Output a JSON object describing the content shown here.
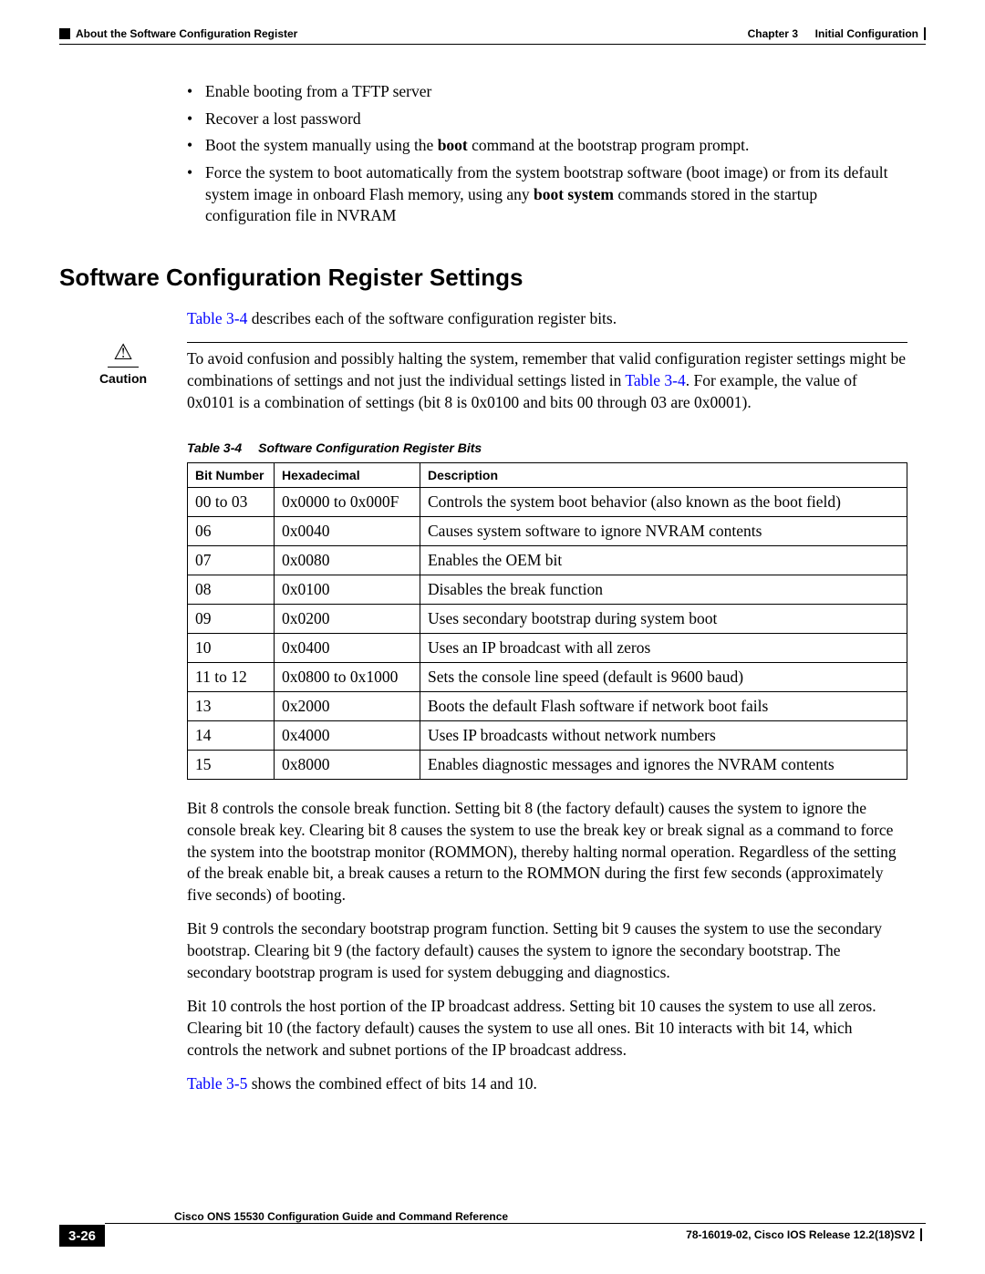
{
  "header": {
    "left": "About the Software Configuration Register",
    "right_chapter": "Chapter 3",
    "right_title": "Initial Configuration"
  },
  "bullets": {
    "b1": "Enable booting from a TFTP server",
    "b2": "Recover a lost password",
    "b3a": "Boot the system manually using the ",
    "b3bold": "boot",
    "b3b": " command at the bootstrap program prompt.",
    "b4a": "Force the system to boot automatically from the system bootstrap software (boot image) or from its default system image in onboard Flash memory, using any ",
    "b4bold": "boot system",
    "b4b": " commands stored in the startup configuration file in NVRAM"
  },
  "heading": "Software Configuration Register Settings",
  "intro": {
    "link": "Table 3-4",
    "rest": " describes each of the software configuration register bits."
  },
  "caution": {
    "label": "Caution",
    "text_a": "To avoid confusion and possibly halting the system, remember that valid configuration register settings might be combinations of settings and not just the individual settings listed in ",
    "link": "Table 3-4",
    "text_b": ". For example, the value of 0x0101 is a combination of settings (bit 8 is 0x0100 and bits 00 through 03 are 0x0001)."
  },
  "table": {
    "caption_num": "Table 3-4",
    "caption_title": "Software Configuration Register Bits",
    "col1": "Bit Number",
    "col2": "Hexadecimal",
    "col3": "Description",
    "rows": [
      {
        "bit": "00 to 03",
        "hex": "0x0000 to 0x000F",
        "desc": "Controls the system boot behavior (also known as the boot field)"
      },
      {
        "bit": "06",
        "hex": "0x0040",
        "desc": "Causes system software to ignore NVRAM contents"
      },
      {
        "bit": "07",
        "hex": "0x0080",
        "desc": "Enables the OEM bit"
      },
      {
        "bit": "08",
        "hex": "0x0100",
        "desc": "Disables the break function"
      },
      {
        "bit": "09",
        "hex": "0x0200",
        "desc": "Uses secondary bootstrap during system boot"
      },
      {
        "bit": "10",
        "hex": "0x0400",
        "desc": "Uses an IP broadcast with all zeros"
      },
      {
        "bit": "11 to 12",
        "hex": "0x0800 to 0x1000",
        "desc": "Sets the console line speed (default is 9600 baud)"
      },
      {
        "bit": "13",
        "hex": "0x2000",
        "desc": "Boots the default Flash software if network boot fails"
      },
      {
        "bit": "14",
        "hex": "0x4000",
        "desc": "Uses IP broadcasts without network numbers"
      },
      {
        "bit": "15",
        "hex": "0x8000",
        "desc": "Enables diagnostic messages and ignores the NVRAM contents"
      }
    ]
  },
  "para1": "Bit 8 controls the console break function. Setting bit 8 (the factory default) causes the system to ignore the console break key. Clearing bit 8 causes the system to use the break key or break signal as a command to force the system into the bootstrap monitor (ROMMON), thereby halting normal operation. Regardless of the setting of the break enable bit, a break causes a return to the ROMMON during the first few seconds (approximately five seconds) of booting.",
  "para2": "Bit 9 controls the secondary bootstrap program function. Setting bit 9 causes the system to use the secondary bootstrap. Clearing bit 9 (the factory default) causes the system to ignore the secondary bootstrap. The secondary bootstrap program is used for system debugging and diagnostics.",
  "para3": "Bit 10 controls the host portion of the IP broadcast address. Setting bit 10 causes the system to use all zeros. Clearing bit 10 (the factory default) causes the system to use all ones. Bit 10 interacts with bit 14, which controls the network and subnet portions of the IP broadcast address.",
  "para4": {
    "link": "Table 3-5",
    "rest": " shows the combined effect of bits 14 and 10."
  },
  "footer": {
    "title": "Cisco ONS 15530 Configuration Guide and Command Reference",
    "page": "3-26",
    "release": "78-16019-02, Cisco IOS Release 12.2(18)SV2"
  }
}
